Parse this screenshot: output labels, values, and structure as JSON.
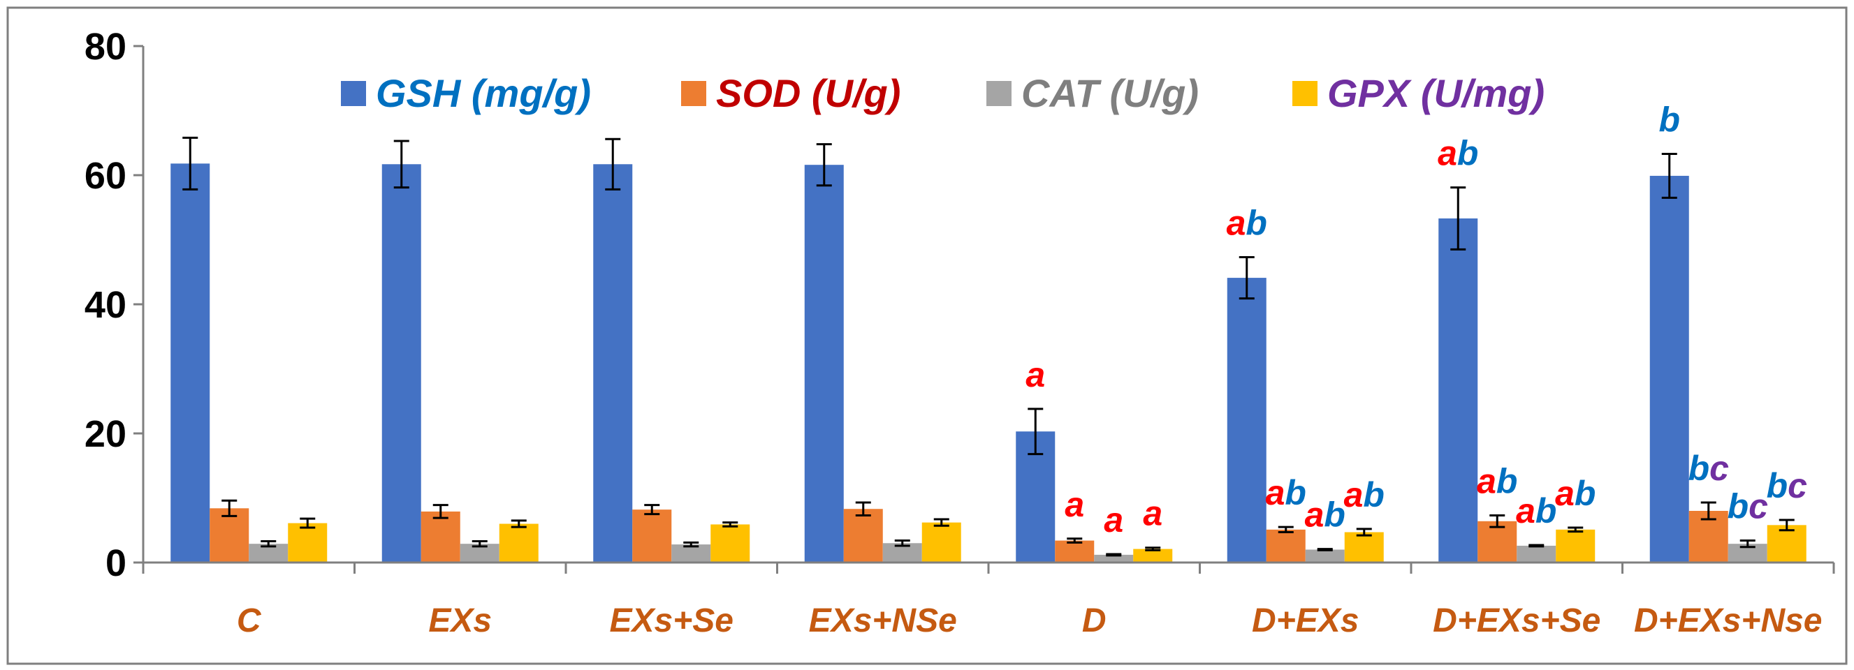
{
  "chart_data": {
    "type": "bar",
    "title": "",
    "xlabel": "",
    "ylabel": "",
    "ylim": [
      0,
      80
    ],
    "yticks": [
      0,
      20,
      40,
      60,
      80
    ],
    "grid": false,
    "legend_position": "top",
    "categories": [
      "C",
      "EXs",
      "EXs+Se",
      "EXs+NSe",
      "D",
      "D+EXs",
      "D+EXs+Se",
      "D+EXs+Nse"
    ],
    "category_label_color": "#c55a11",
    "series": [
      {
        "name": "GSH (mg/g)",
        "color": "#4472c4",
        "legend_text_color": "#0070c0",
        "values": [
          61.8,
          61.7,
          61.7,
          61.6,
          20.3,
          44.1,
          53.3,
          59.9
        ],
        "errors": [
          4.0,
          3.6,
          3.9,
          3.2,
          3.5,
          3.2,
          4.8,
          3.4
        ]
      },
      {
        "name": "SOD (U/g)",
        "color": "#ed7d31",
        "legend_text_color": "#c00000",
        "values": [
          8.4,
          7.9,
          8.2,
          8.3,
          3.4,
          5.1,
          6.4,
          8.0
        ],
        "errors": [
          1.2,
          1.0,
          0.7,
          1.0,
          0.3,
          0.4,
          0.9,
          1.3
        ]
      },
      {
        "name": "CAT (U/g)",
        "color": "#a5a5a5",
        "legend_text_color": "#7f7f7f",
        "values": [
          2.9,
          2.9,
          2.8,
          3.0,
          1.2,
          2.0,
          2.6,
          2.9
        ],
        "errors": [
          0.4,
          0.4,
          0.3,
          0.4,
          0.1,
          0.1,
          0.1,
          0.5
        ]
      },
      {
        "name": "GPX (U/mg)",
        "color": "#ffc000",
        "legend_text_color": "#7030a0",
        "values": [
          6.1,
          6.0,
          5.9,
          6.2,
          2.1,
          4.7,
          5.1,
          5.8
        ],
        "errors": [
          0.7,
          0.5,
          0.3,
          0.5,
          0.2,
          0.5,
          0.3,
          0.8
        ]
      }
    ],
    "annotations": [
      {
        "category": "D",
        "series": "GSH (mg/g)",
        "parts": [
          {
            "text": "a",
            "color": "#ff0000"
          }
        ]
      },
      {
        "category": "D",
        "series": "SOD (U/g)",
        "parts": [
          {
            "text": "a",
            "color": "#ff0000"
          }
        ]
      },
      {
        "category": "D",
        "series": "CAT (U/g)",
        "parts": [
          {
            "text": "a",
            "color": "#ff0000"
          }
        ]
      },
      {
        "category": "D",
        "series": "GPX (U/mg)",
        "parts": [
          {
            "text": "a",
            "color": "#ff0000"
          }
        ]
      },
      {
        "category": "D+EXs",
        "series": "GSH (mg/g)",
        "parts": [
          {
            "text": "a",
            "color": "#ff0000"
          },
          {
            "text": "b",
            "color": "#0070c0"
          }
        ]
      },
      {
        "category": "D+EXs",
        "series": "SOD (U/g)",
        "parts": [
          {
            "text": "a",
            "color": "#ff0000"
          },
          {
            "text": "b",
            "color": "#0070c0"
          }
        ]
      },
      {
        "category": "D+EXs",
        "series": "CAT (U/g)",
        "parts": [
          {
            "text": "a",
            "color": "#ff0000"
          },
          {
            "text": "b",
            "color": "#0070c0"
          }
        ]
      },
      {
        "category": "D+EXs",
        "series": "GPX (U/mg)",
        "parts": [
          {
            "text": "a",
            "color": "#ff0000"
          },
          {
            "text": "b",
            "color": "#0070c0"
          }
        ]
      },
      {
        "category": "D+EXs+Se",
        "series": "GSH (mg/g)",
        "parts": [
          {
            "text": "a",
            "color": "#ff0000"
          },
          {
            "text": "b",
            "color": "#0070c0"
          }
        ]
      },
      {
        "category": "D+EXs+Se",
        "series": "SOD (U/g)",
        "parts": [
          {
            "text": "a",
            "color": "#ff0000"
          },
          {
            "text": "b",
            "color": "#0070c0"
          }
        ]
      },
      {
        "category": "D+EXs+Se",
        "series": "CAT (U/g)",
        "parts": [
          {
            "text": "a",
            "color": "#ff0000"
          },
          {
            "text": "b",
            "color": "#0070c0"
          }
        ]
      },
      {
        "category": "D+EXs+Se",
        "series": "GPX (U/mg)",
        "parts": [
          {
            "text": "a",
            "color": "#ff0000"
          },
          {
            "text": "b",
            "color": "#0070c0"
          }
        ]
      },
      {
        "category": "D+EXs+Nse",
        "series": "GSH (mg/g)",
        "parts": [
          {
            "text": "b",
            "color": "#0070c0"
          }
        ]
      },
      {
        "category": "D+EXs+Nse",
        "series": "SOD (U/g)",
        "parts": [
          {
            "text": "b",
            "color": "#0070c0"
          },
          {
            "text": "c",
            "color": "#7030a0"
          }
        ]
      },
      {
        "category": "D+EXs+Nse",
        "series": "CAT (U/g)",
        "parts": [
          {
            "text": "b",
            "color": "#0070c0"
          },
          {
            "text": "c",
            "color": "#7030a0"
          }
        ]
      },
      {
        "category": "D+EXs+Nse",
        "series": "GPX (U/mg)",
        "parts": [
          {
            "text": "b",
            "color": "#0070c0"
          },
          {
            "text": "c",
            "color": "#7030a0"
          }
        ]
      }
    ]
  }
}
